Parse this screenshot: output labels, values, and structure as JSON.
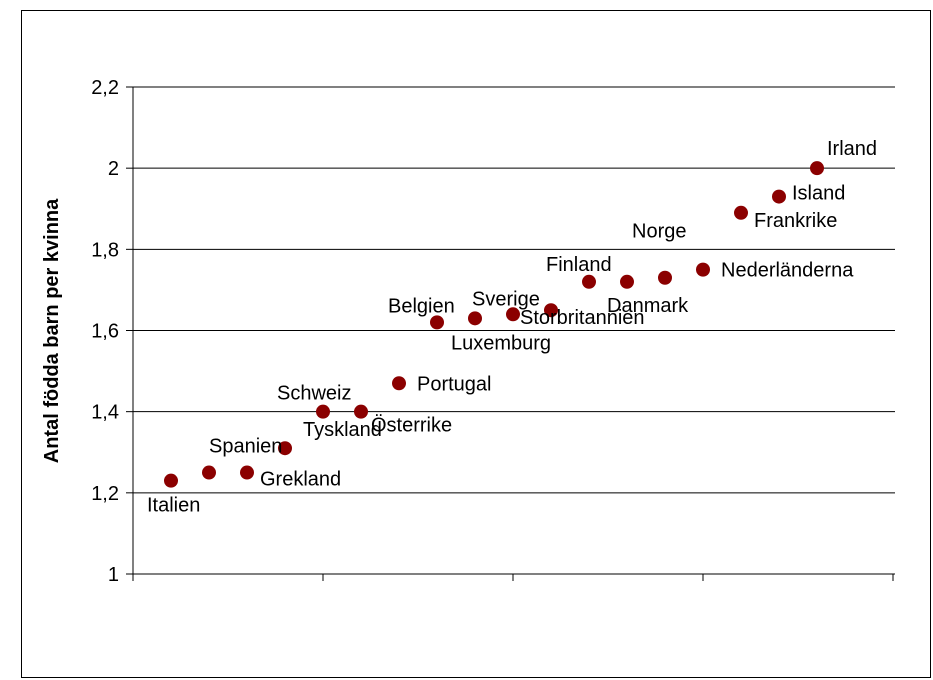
{
  "chart_data": {
    "type": "scatter",
    "title": "",
    "xlabel": "",
    "ylabel": "Antal födda barn per kvinna",
    "ylim": [
      1,
      2.2
    ],
    "yticks": [
      "1",
      "1,2",
      "1,4",
      "1,6",
      "1,8",
      "2",
      "2,2"
    ],
    "grid": true,
    "legend": "none",
    "colors": {
      "marker": "#8b0000",
      "gridline": "#000000",
      "axis": "#000000"
    },
    "points": [
      {
        "label": "Italien",
        "x": 1,
        "y": 1.23
      },
      {
        "label": "Spanien",
        "x": 2,
        "y": 1.25
      },
      {
        "label": "Grekland",
        "x": 3,
        "y": 1.25
      },
      {
        "label": "Tyskland",
        "x": 4,
        "y": 1.31
      },
      {
        "label": "Schweiz",
        "x": 5,
        "y": 1.4
      },
      {
        "label": "Österrike",
        "x": 6,
        "y": 1.4
      },
      {
        "label": "Portugal",
        "x": 7,
        "y": 1.47
      },
      {
        "label": "Belgien",
        "x": 8,
        "y": 1.62
      },
      {
        "label": "Luxemburg",
        "x": 9,
        "y": 1.63
      },
      {
        "label": "Sverige",
        "x": 10,
        "y": 1.64
      },
      {
        "label": "Storbritannien",
        "x": 11,
        "y": 1.65
      },
      {
        "label": "Finland",
        "x": 12,
        "y": 1.72
      },
      {
        "label": "Danmark",
        "x": 13,
        "y": 1.72
      },
      {
        "label": "Norge",
        "x": 14,
        "y": 1.73
      },
      {
        "label": "Nederländerna",
        "x": 15,
        "y": 1.75
      },
      {
        "label": "Frankrike",
        "x": 16,
        "y": 1.89
      },
      {
        "label": "Island",
        "x": 17,
        "y": 1.93
      },
      {
        "label": "Irland",
        "x": 18,
        "y": 2.0
      }
    ]
  }
}
